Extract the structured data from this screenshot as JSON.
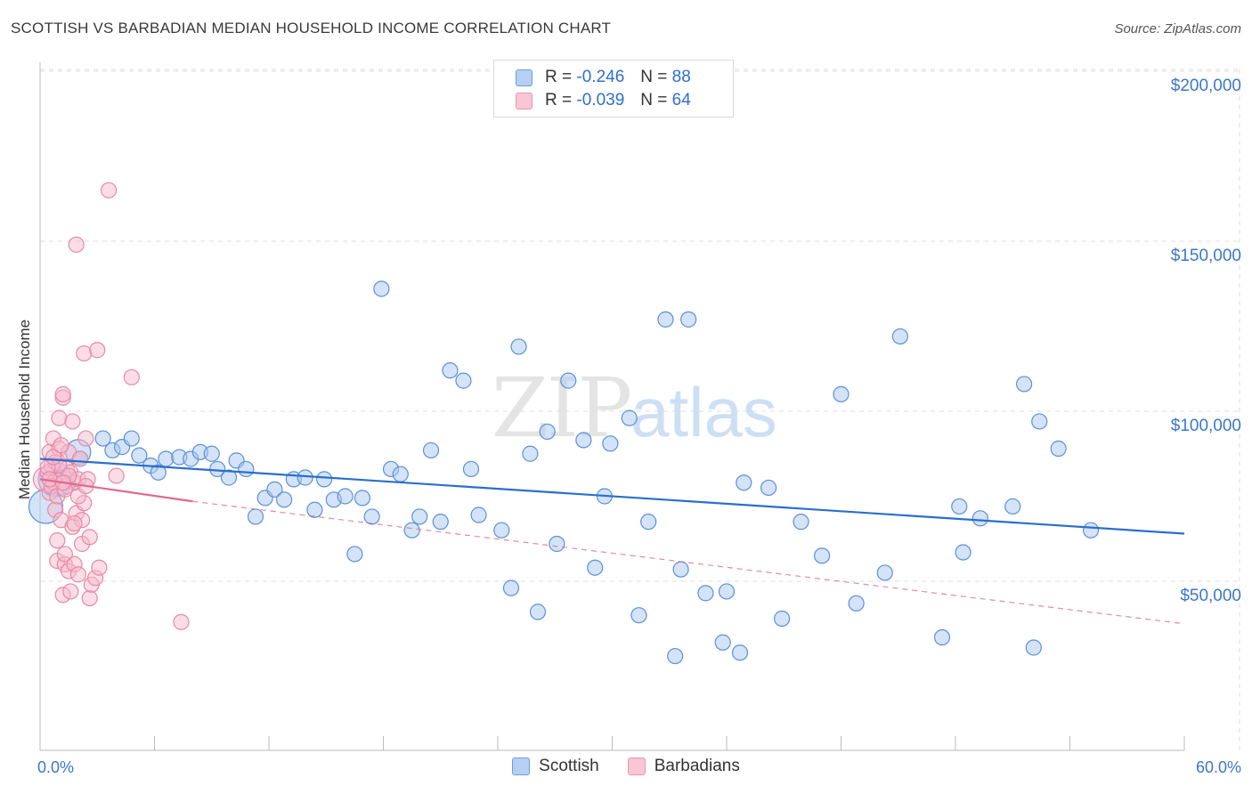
{
  "title": "SCOTTISH VS BARBADIAN MEDIAN HOUSEHOLD INCOME CORRELATION CHART",
  "source": "Source: ZipAtlas.com",
  "watermark": {
    "zip": "ZIP",
    "atlas": "atlas"
  },
  "legend": {
    "scottish": {
      "r_label": "R =",
      "r_value": "-0.246",
      "n_label": "N =",
      "n_value": "88"
    },
    "barbadians": {
      "r_label": "R =",
      "r_value": "-0.039",
      "n_label": "N =",
      "n_value": "64"
    }
  },
  "colors": {
    "scottish_fill": "#a9c8ef",
    "scottish_stroke": "#5a91d8",
    "scottish_line": "#2a6fcc",
    "barbadian_fill": "#f6bccd",
    "barbadian_stroke": "#e889a6",
    "barbadian_line": "#e06a90",
    "grid": "#dddddd",
    "tick_label": "#3b77c9"
  },
  "chart_data": {
    "type": "scatter",
    "title": "SCOTTISH VS BARBADIAN MEDIAN HOUSEHOLD INCOME CORRELATION CHART",
    "xlabel": "",
    "ylabel": "Median Household Income",
    "xlim": [
      0,
      60
    ],
    "ylim": [
      0,
      205000
    ],
    "x_tick_labels": [
      "0.0%",
      "60.0%"
    ],
    "y_ticks": [
      50000,
      100000,
      150000,
      200000
    ],
    "y_tick_labels": [
      "$50,000",
      "$100,000",
      "$150,000",
      "$200,000"
    ],
    "legend_position": "bottom-center",
    "series": [
      {
        "name": "Scottish",
        "trend": {
          "x0": 0,
          "y0": 86000,
          "x1": 60,
          "y1": 64000,
          "style": "solid"
        },
        "points": [
          {
            "x": 0.3,
            "y": 72000,
            "s": 3
          },
          {
            "x": 0.8,
            "y": 80000,
            "s": 3
          },
          {
            "x": 1.2,
            "y": 79000,
            "s": 2
          },
          {
            "x": 2.0,
            "y": 88000,
            "s": 2
          },
          {
            "x": 2.1,
            "y": 86000,
            "s": 1
          },
          {
            "x": 3.3,
            "y": 92000,
            "s": 1
          },
          {
            "x": 3.8,
            "y": 88500,
            "s": 1
          },
          {
            "x": 4.3,
            "y": 89500,
            "s": 1
          },
          {
            "x": 4.8,
            "y": 92000,
            "s": 1
          },
          {
            "x": 5.2,
            "y": 87000,
            "s": 1
          },
          {
            "x": 5.8,
            "y": 84000,
            "s": 1
          },
          {
            "x": 6.2,
            "y": 82000,
            "s": 1
          },
          {
            "x": 6.6,
            "y": 86000,
            "s": 1
          },
          {
            "x": 7.3,
            "y": 86500,
            "s": 1
          },
          {
            "x": 7.9,
            "y": 86000,
            "s": 1
          },
          {
            "x": 8.4,
            "y": 88000,
            "s": 1
          },
          {
            "x": 9.0,
            "y": 87500,
            "s": 1
          },
          {
            "x": 9.3,
            "y": 83000,
            "s": 1
          },
          {
            "x": 9.9,
            "y": 80500,
            "s": 1
          },
          {
            "x": 10.3,
            "y": 85500,
            "s": 1
          },
          {
            "x": 10.8,
            "y": 83000,
            "s": 1
          },
          {
            "x": 11.3,
            "y": 69000,
            "s": 1
          },
          {
            "x": 11.8,
            "y": 74500,
            "s": 1
          },
          {
            "x": 12.3,
            "y": 77000,
            "s": 1
          },
          {
            "x": 12.8,
            "y": 74000,
            "s": 1
          },
          {
            "x": 13.3,
            "y": 80000,
            "s": 1
          },
          {
            "x": 13.9,
            "y": 80500,
            "s": 1
          },
          {
            "x": 14.4,
            "y": 71000,
            "s": 1
          },
          {
            "x": 14.9,
            "y": 80000,
            "s": 1
          },
          {
            "x": 15.4,
            "y": 74000,
            "s": 1
          },
          {
            "x": 16.0,
            "y": 75000,
            "s": 1
          },
          {
            "x": 16.5,
            "y": 58000,
            "s": 1
          },
          {
            "x": 16.9,
            "y": 74500,
            "s": 1
          },
          {
            "x": 17.4,
            "y": 69000,
            "s": 1
          },
          {
            "x": 17.9,
            "y": 136000,
            "s": 1
          },
          {
            "x": 18.4,
            "y": 83000,
            "s": 1
          },
          {
            "x": 18.9,
            "y": 81500,
            "s": 1
          },
          {
            "x": 19.5,
            "y": 65000,
            "s": 1
          },
          {
            "x": 19.9,
            "y": 69000,
            "s": 1
          },
          {
            "x": 20.5,
            "y": 88500,
            "s": 1
          },
          {
            "x": 21.0,
            "y": 67500,
            "s": 1
          },
          {
            "x": 21.5,
            "y": 112000,
            "s": 1
          },
          {
            "x": 22.2,
            "y": 109000,
            "s": 1
          },
          {
            "x": 22.6,
            "y": 83000,
            "s": 1
          },
          {
            "x": 23.0,
            "y": 69500,
            "s": 1
          },
          {
            "x": 24.2,
            "y": 65000,
            "s": 1
          },
          {
            "x": 24.7,
            "y": 48000,
            "s": 1
          },
          {
            "x": 25.1,
            "y": 119000,
            "s": 1
          },
          {
            "x": 25.7,
            "y": 87500,
            "s": 1
          },
          {
            "x": 26.1,
            "y": 41000,
            "s": 1
          },
          {
            "x": 26.6,
            "y": 94000,
            "s": 1
          },
          {
            "x": 27.1,
            "y": 61000,
            "s": 1
          },
          {
            "x": 27.7,
            "y": 109000,
            "s": 1
          },
          {
            "x": 28.5,
            "y": 91500,
            "s": 1
          },
          {
            "x": 29.1,
            "y": 54000,
            "s": 1
          },
          {
            "x": 29.6,
            "y": 75000,
            "s": 1
          },
          {
            "x": 29.9,
            "y": 90500,
            "s": 1
          },
          {
            "x": 30.9,
            "y": 98000,
            "s": 1
          },
          {
            "x": 31.4,
            "y": 40000,
            "s": 1
          },
          {
            "x": 31.9,
            "y": 67500,
            "s": 1
          },
          {
            "x": 32.8,
            "y": 127000,
            "s": 1
          },
          {
            "x": 33.3,
            "y": 28000,
            "s": 1
          },
          {
            "x": 33.6,
            "y": 53500,
            "s": 1
          },
          {
            "x": 34.0,
            "y": 127000,
            "s": 1
          },
          {
            "x": 34.9,
            "y": 46500,
            "s": 1
          },
          {
            "x": 35.8,
            "y": 32000,
            "s": 1
          },
          {
            "x": 36.0,
            "y": 47000,
            "s": 1
          },
          {
            "x": 36.7,
            "y": 29000,
            "s": 1
          },
          {
            "x": 36.9,
            "y": 79000,
            "s": 1
          },
          {
            "x": 38.2,
            "y": 77500,
            "s": 1
          },
          {
            "x": 38.9,
            "y": 39000,
            "s": 1
          },
          {
            "x": 39.9,
            "y": 67500,
            "s": 1
          },
          {
            "x": 41.0,
            "y": 57500,
            "s": 1
          },
          {
            "x": 42.0,
            "y": 105000,
            "s": 1
          },
          {
            "x": 42.8,
            "y": 43500,
            "s": 1
          },
          {
            "x": 44.3,
            "y": 52500,
            "s": 1
          },
          {
            "x": 45.1,
            "y": 122000,
            "s": 1
          },
          {
            "x": 47.3,
            "y": 33500,
            "s": 1
          },
          {
            "x": 48.2,
            "y": 72000,
            "s": 1
          },
          {
            "x": 48.4,
            "y": 58500,
            "s": 1
          },
          {
            "x": 49.3,
            "y": 68500,
            "s": 1
          },
          {
            "x": 51.0,
            "y": 72000,
            "s": 1
          },
          {
            "x": 51.6,
            "y": 108000,
            "s": 1
          },
          {
            "x": 52.1,
            "y": 30500,
            "s": 1
          },
          {
            "x": 52.4,
            "y": 97000,
            "s": 1
          },
          {
            "x": 53.4,
            "y": 89000,
            "s": 1
          },
          {
            "x": 55.1,
            "y": 65000,
            "s": 1
          }
        ]
      },
      {
        "name": "Barbadians",
        "trend": {
          "x0": 0,
          "y0": 80000,
          "x1": 8,
          "y1": 73500,
          "style": "solid",
          "extended_to": [
            60,
            37500
          ],
          "extended_style": "dashed"
        },
        "points": [
          {
            "x": 0.3,
            "y": 80000,
            "s": 2
          },
          {
            "x": 0.4,
            "y": 82000,
            "s": 1
          },
          {
            "x": 0.5,
            "y": 88000,
            "s": 1
          },
          {
            "x": 0.5,
            "y": 76000,
            "s": 1
          },
          {
            "x": 0.6,
            "y": 84000,
            "s": 1
          },
          {
            "x": 0.7,
            "y": 92000,
            "s": 1
          },
          {
            "x": 0.7,
            "y": 79000,
            "s": 1
          },
          {
            "x": 0.8,
            "y": 85000,
            "s": 1
          },
          {
            "x": 0.8,
            "y": 71000,
            "s": 1
          },
          {
            "x": 0.9,
            "y": 62000,
            "s": 1
          },
          {
            "x": 0.9,
            "y": 56000,
            "s": 1
          },
          {
            "x": 1.0,
            "y": 98000,
            "s": 1
          },
          {
            "x": 1.0,
            "y": 89000,
            "s": 1
          },
          {
            "x": 1.1,
            "y": 80000,
            "s": 1
          },
          {
            "x": 1.1,
            "y": 68000,
            "s": 1
          },
          {
            "x": 1.2,
            "y": 104000,
            "s": 1
          },
          {
            "x": 1.2,
            "y": 105000,
            "s": 1
          },
          {
            "x": 1.2,
            "y": 46000,
            "s": 1
          },
          {
            "x": 1.3,
            "y": 55000,
            "s": 1
          },
          {
            "x": 1.3,
            "y": 58000,
            "s": 1
          },
          {
            "x": 1.4,
            "y": 83000,
            "s": 1
          },
          {
            "x": 1.4,
            "y": 78000,
            "s": 1
          },
          {
            "x": 1.5,
            "y": 88000,
            "s": 1
          },
          {
            "x": 1.5,
            "y": 53000,
            "s": 1
          },
          {
            "x": 1.6,
            "y": 82000,
            "s": 1
          },
          {
            "x": 1.6,
            "y": 47000,
            "s": 1
          },
          {
            "x": 1.7,
            "y": 97000,
            "s": 1
          },
          {
            "x": 1.7,
            "y": 66000,
            "s": 1
          },
          {
            "x": 1.8,
            "y": 79000,
            "s": 1
          },
          {
            "x": 1.8,
            "y": 55000,
            "s": 1
          },
          {
            "x": 1.9,
            "y": 149000,
            "s": 1
          },
          {
            "x": 1.9,
            "y": 70000,
            "s": 1
          },
          {
            "x": 2.0,
            "y": 80000,
            "s": 1
          },
          {
            "x": 2.0,
            "y": 52000,
            "s": 1
          },
          {
            "x": 2.1,
            "y": 86000,
            "s": 1
          },
          {
            "x": 2.2,
            "y": 61000,
            "s": 1
          },
          {
            "x": 2.2,
            "y": 68000,
            "s": 1
          },
          {
            "x": 2.3,
            "y": 73000,
            "s": 1
          },
          {
            "x": 2.3,
            "y": 117000,
            "s": 1
          },
          {
            "x": 2.4,
            "y": 92000,
            "s": 1
          },
          {
            "x": 2.5,
            "y": 80000,
            "s": 1
          },
          {
            "x": 2.6,
            "y": 63000,
            "s": 1
          },
          {
            "x": 2.6,
            "y": 45000,
            "s": 1
          },
          {
            "x": 2.7,
            "y": 49000,
            "s": 1
          },
          {
            "x": 2.9,
            "y": 51000,
            "s": 1
          },
          {
            "x": 3.0,
            "y": 118000,
            "s": 1
          },
          {
            "x": 3.1,
            "y": 54000,
            "s": 1
          },
          {
            "x": 3.6,
            "y": 165000,
            "s": 1
          },
          {
            "x": 4.0,
            "y": 81000,
            "s": 1
          },
          {
            "x": 4.8,
            "y": 110000,
            "s": 1
          },
          {
            "x": 7.4,
            "y": 38000,
            "s": 1
          },
          {
            "x": 0.6,
            "y": 78000,
            "s": 1
          },
          {
            "x": 0.9,
            "y": 75000,
            "s": 1
          },
          {
            "x": 1.0,
            "y": 84000,
            "s": 1
          },
          {
            "x": 1.3,
            "y": 77000,
            "s": 1
          },
          {
            "x": 1.5,
            "y": 81000,
            "s": 1
          },
          {
            "x": 0.4,
            "y": 83500,
            "s": 1
          },
          {
            "x": 0.7,
            "y": 86500,
            "s": 1
          },
          {
            "x": 1.1,
            "y": 90000,
            "s": 1
          },
          {
            "x": 1.8,
            "y": 67000,
            "s": 1
          },
          {
            "x": 2.0,
            "y": 75000,
            "s": 1
          },
          {
            "x": 2.4,
            "y": 78000,
            "s": 1
          },
          {
            "x": 0.5,
            "y": 80000,
            "s": 1
          },
          {
            "x": 1.2,
            "y": 79000,
            "s": 1
          }
        ]
      }
    ]
  }
}
